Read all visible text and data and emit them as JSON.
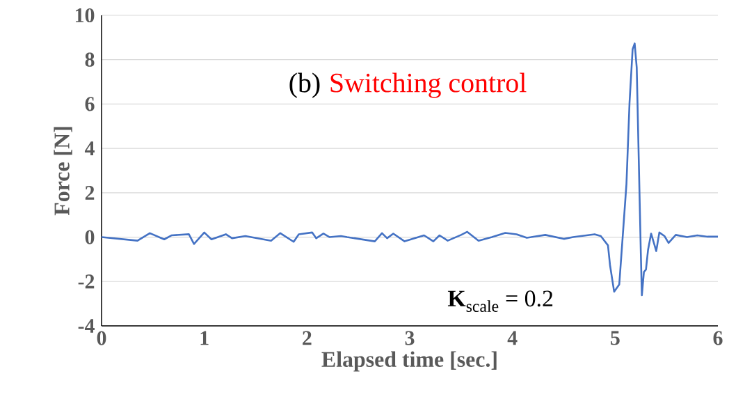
{
  "chart_data": {
    "type": "line",
    "title": "Switching control",
    "xlabel": "Elapsed time [sec.]",
    "ylabel": "Force [N]",
    "annotations": [
      "(b)",
      "**K**$_{scale}$ = 0.2"
    ],
    "x": [
      0.0,
      0.35,
      0.47,
      0.61,
      0.68,
      0.85,
      0.9,
      1.0,
      1.07,
      1.21,
      1.27,
      1.4,
      1.65,
      1.74,
      1.87,
      1.92,
      2.05,
      2.09,
      2.16,
      2.22,
      2.33,
      2.39,
      2.66,
      2.73,
      2.78,
      2.84,
      2.95,
      3.14,
      3.23,
      3.29,
      3.37,
      3.5,
      3.56,
      3.67,
      3.8,
      3.93,
      4.04,
      4.14,
      4.32,
      4.5,
      4.59,
      4.8,
      4.86,
      4.93,
      4.95,
      4.99,
      5.04,
      5.07,
      5.11,
      5.14,
      5.17,
      5.19,
      5.21,
      5.23,
      5.25,
      5.26,
      5.28,
      5.3,
      5.32,
      5.35,
      5.38,
      5.4,
      5.43,
      5.48,
      5.52,
      5.59,
      5.7,
      5.8,
      5.9,
      6.0
    ],
    "series": [
      {
        "color": "#4472c4",
        "values": [
          0.0,
          -0.16,
          0.18,
          -0.1,
          0.08,
          0.13,
          -0.31,
          0.21,
          -0.1,
          0.13,
          -0.05,
          0.05,
          -0.16,
          0.18,
          -0.21,
          0.13,
          0.21,
          -0.05,
          0.16,
          0.0,
          0.05,
          0.0,
          -0.19,
          0.18,
          -0.05,
          0.16,
          -0.19,
          0.08,
          -0.19,
          0.08,
          -0.16,
          0.1,
          0.24,
          -0.16,
          0.0,
          0.19,
          0.13,
          -0.03,
          0.1,
          -0.08,
          0.0,
          0.13,
          0.05,
          -0.37,
          -1.26,
          -2.46,
          -2.13,
          -0.2,
          2.4,
          6.07,
          8.47,
          8.73,
          7.64,
          3.45,
          -0.73,
          -2.62,
          -1.57,
          -1.46,
          -0.58,
          0.16,
          -0.31,
          -0.63,
          0.21,
          0.05,
          -0.26,
          0.1,
          0.0,
          0.08,
          0.02,
          0.02
        ]
      }
    ],
    "xlim": [
      0,
      6
    ],
    "ylim": [
      -4,
      10
    ],
    "xticks": [
      0,
      1,
      2,
      3,
      4,
      5,
      6
    ],
    "yticks": [
      -4,
      -2,
      0,
      2,
      4,
      6,
      8,
      10
    ],
    "grid": "y",
    "line_style": "solid"
  }
}
